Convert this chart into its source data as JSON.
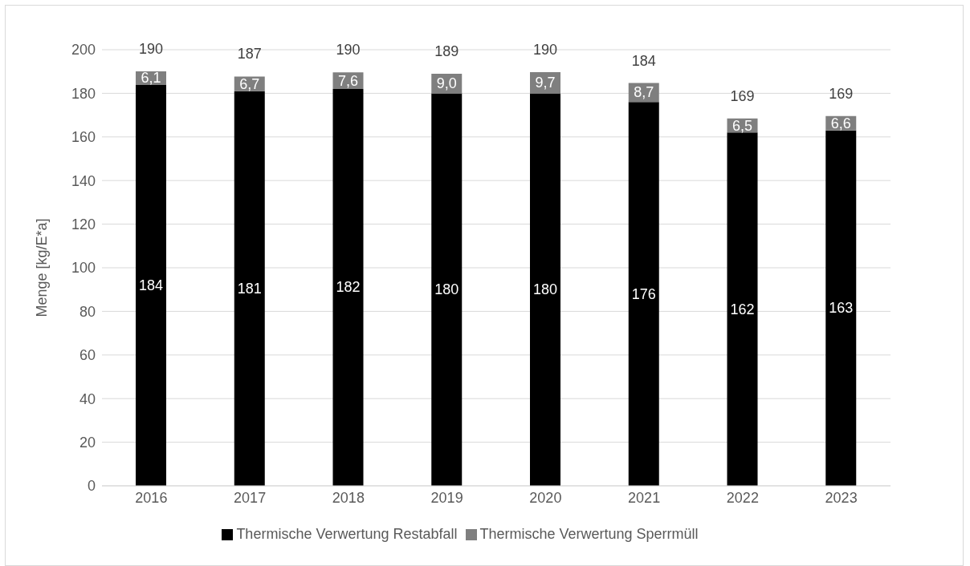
{
  "chart_data": {
    "type": "bar",
    "stacked": true,
    "ylabel": "Menge [kg/E*a]",
    "categories": [
      "2016",
      "2017",
      "2018",
      "2019",
      "2020",
      "2021",
      "2022",
      "2023"
    ],
    "series": [
      {
        "name": "Thermische Verwertung Restabfall",
        "color": "#000000",
        "values": [
          184,
          181,
          182,
          180,
          180,
          176,
          162,
          163
        ],
        "value_labels": [
          "184",
          "181",
          "182",
          "180",
          "180",
          "176",
          "162",
          "163"
        ]
      },
      {
        "name": "Thermische Verwertung Sperrmüll",
        "color": "#7f7f7f",
        "values": [
          6.1,
          6.7,
          7.6,
          9.0,
          9.7,
          8.7,
          6.5,
          6.6
        ],
        "value_labels": [
          "6,1",
          "6,7",
          "7,6",
          "9,0",
          "9,7",
          "8,7",
          "6,5",
          "6,6"
        ]
      }
    ],
    "totals": [
      "190",
      "187",
      "190",
      "189",
      "190",
      "184",
      "169",
      "169"
    ],
    "ylim": [
      0,
      200
    ],
    "yticks": [
      0,
      20,
      40,
      60,
      80,
      100,
      120,
      140,
      160,
      180,
      200
    ],
    "grid": "y",
    "legend": "bottom"
  }
}
